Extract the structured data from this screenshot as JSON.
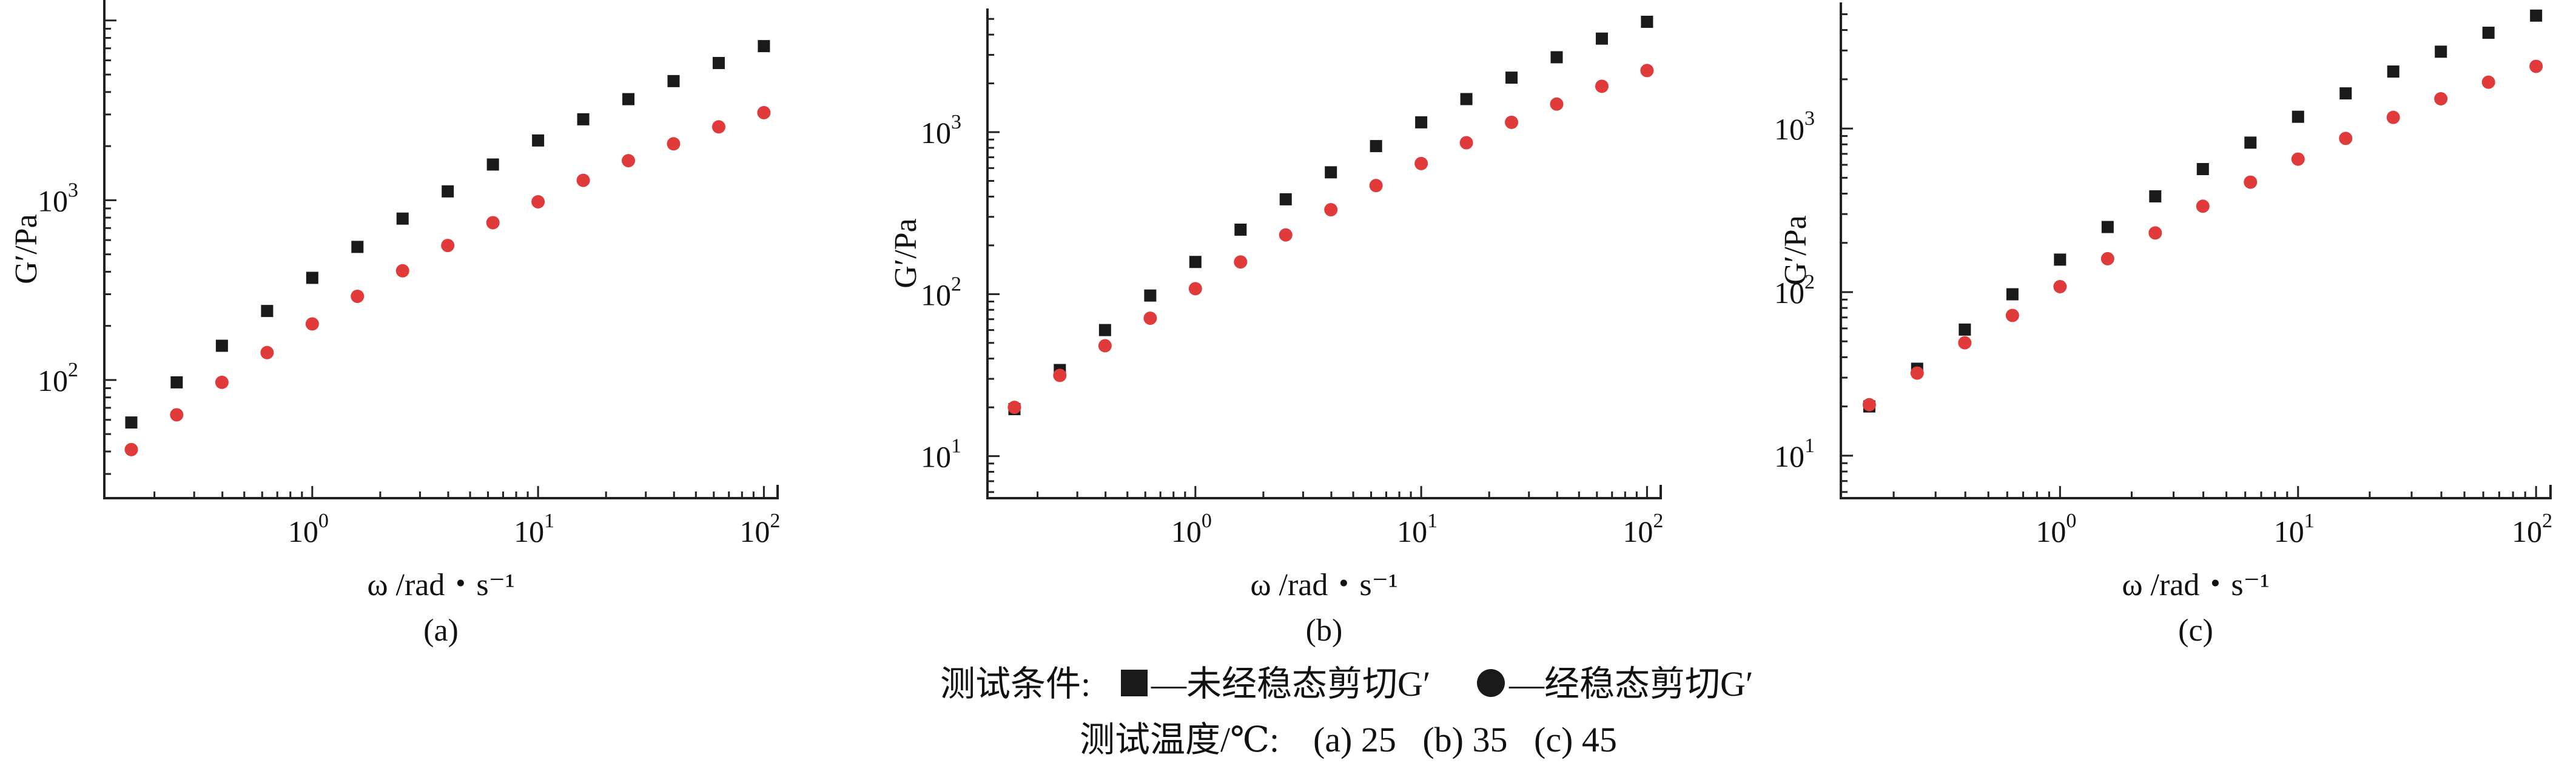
{
  "chart_data": [
    {
      "type": "scatter",
      "panel_label": "(a)",
      "xlabel": "ω /rad・s⁻¹",
      "ylabel": "G′/Pa",
      "xscale": "log",
      "yscale": "log",
      "xlim": [
        0.12,
        115
      ],
      "ylim": [
        22,
        13000
      ],
      "xticks": [
        {
          "value": 1,
          "mantissa": "10",
          "exp": "0"
        },
        {
          "value": 10,
          "mantissa": "10",
          "exp": "1"
        },
        {
          "value": 100,
          "mantissa": "10",
          "exp": "2"
        }
      ],
      "yticks": [
        {
          "value": 100,
          "mantissa": "10",
          "exp": "2"
        },
        {
          "value": 1000,
          "mantissa": "10",
          "exp": "3"
        }
      ],
      "grid": false,
      "series": [
        {
          "marker": "square",
          "color": "#1a1a1a",
          "x": [
            0.158,
            0.251,
            0.398,
            0.631,
            1.0,
            1.585,
            2.512,
            3.981,
            6.31,
            10.0,
            15.85,
            25.12,
            39.81,
            63.1,
            100.0
          ],
          "y": [
            58,
            97,
            155,
            242,
            370,
            550,
            790,
            1120,
            1580,
            2150,
            2820,
            3650,
            4600,
            5800,
            7200
          ]
        },
        {
          "marker": "circle",
          "color": "#e03a3a",
          "x": [
            0.158,
            0.251,
            0.398,
            0.631,
            1.0,
            1.585,
            2.512,
            3.981,
            6.31,
            10.0,
            15.85,
            25.12,
            39.81,
            63.1,
            100.0
          ],
          "y": [
            41,
            64,
            97,
            142,
            205,
            292,
            405,
            560,
            750,
            980,
            1290,
            1660,
            2060,
            2560,
            3070
          ]
        }
      ]
    },
    {
      "type": "scatter",
      "panel_label": "(b)",
      "xlabel": "ω /rad・s⁻¹",
      "ylabel": "G′/Pa",
      "xscale": "log",
      "yscale": "log",
      "xlim": [
        0.12,
        115
      ],
      "ylim": [
        5.5,
        5800
      ],
      "xticks": [
        {
          "value": 1,
          "mantissa": "10",
          "exp": "0"
        },
        {
          "value": 10,
          "mantissa": "10",
          "exp": "1"
        },
        {
          "value": 100,
          "mantissa": "10",
          "exp": "2"
        }
      ],
      "yticks": [
        {
          "value": 10,
          "mantissa": "10",
          "exp": "1"
        },
        {
          "value": 100,
          "mantissa": "10",
          "exp": "2"
        },
        {
          "value": 1000,
          "mantissa": "10",
          "exp": "3"
        }
      ],
      "grid": false,
      "series": [
        {
          "marker": "square",
          "color": "#1a1a1a",
          "x": [
            0.158,
            0.251,
            0.398,
            0.631,
            1.0,
            1.585,
            2.512,
            3.981,
            6.31,
            10.0,
            15.85,
            25.12,
            39.81,
            63.1,
            100.0
          ],
          "y": [
            19.5,
            34,
            60,
            98,
            158,
            250,
            385,
            565,
            820,
            1150,
            1600,
            2170,
            2900,
            3780,
            4800
          ]
        },
        {
          "marker": "circle",
          "color": "#e03a3a",
          "x": [
            0.158,
            0.251,
            0.398,
            0.631,
            1.0,
            1.585,
            2.512,
            3.981,
            6.31,
            10.0,
            15.85,
            25.12,
            39.81,
            63.1,
            100.0
          ],
          "y": [
            20,
            31.5,
            48,
            71,
            108,
            158,
            232,
            332,
            468,
            640,
            860,
            1150,
            1490,
            1920,
            2400
          ]
        }
      ]
    },
    {
      "type": "scatter",
      "panel_label": "(c)",
      "xlabel": "ω /rad・s⁻¹",
      "ylabel": "G′/Pa",
      "xscale": "log",
      "yscale": "log",
      "xlim": [
        0.12,
        115
      ],
      "ylim": [
        5.5,
        5900
      ],
      "xticks": [
        {
          "value": 1,
          "mantissa": "10",
          "exp": "0"
        },
        {
          "value": 10,
          "mantissa": "10",
          "exp": "1"
        },
        {
          "value": 100,
          "mantissa": "10",
          "exp": "2"
        }
      ],
      "yticks": [
        {
          "value": 10,
          "mantissa": "10",
          "exp": "1"
        },
        {
          "value": 100,
          "mantissa": "10",
          "exp": "2"
        },
        {
          "value": 1000,
          "mantissa": "10",
          "exp": "3"
        }
      ],
      "grid": false,
      "series": [
        {
          "marker": "square",
          "color": "#1a1a1a",
          "x": [
            0.158,
            0.251,
            0.398,
            0.631,
            1.0,
            1.585,
            2.512,
            3.981,
            6.31,
            10.0,
            15.85,
            25.12,
            39.81,
            63.1,
            100.0
          ],
          "y": [
            20,
            34,
            59,
            97,
            158,
            250,
            385,
            565,
            820,
            1180,
            1640,
            2230,
            2950,
            3850,
            4900
          ]
        },
        {
          "marker": "circle",
          "color": "#e03a3a",
          "x": [
            0.158,
            0.251,
            0.398,
            0.631,
            1.0,
            1.585,
            2.512,
            3.981,
            6.31,
            10.0,
            15.85,
            25.12,
            39.81,
            63.1,
            100.0
          ],
          "y": [
            20.5,
            32,
            49,
            72,
            108,
            160,
            230,
            335,
            470,
            650,
            870,
            1170,
            1520,
            1920,
            2400
          ]
        }
      ]
    }
  ],
  "legend": {
    "prefix": "测试条件:",
    "items": [
      {
        "marker": "square",
        "label": "—未经稳态剪切G′"
      },
      {
        "marker": "circle",
        "label": "—经稳态剪切G′"
      }
    ]
  },
  "conditions": {
    "label": "测试温度/℃:",
    "values": "(a) 25   (b) 35   (c) 45"
  }
}
